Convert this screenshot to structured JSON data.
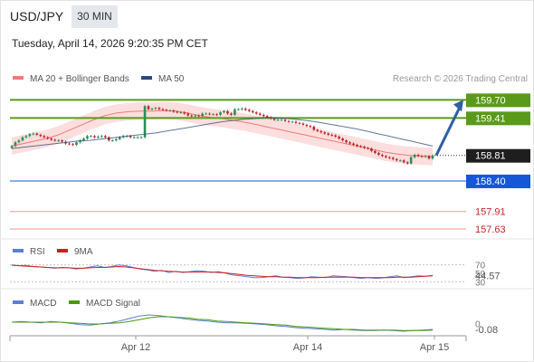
{
  "header": {
    "symbol": "USD/JPY",
    "timeframe": "30 MIN",
    "datetime": "Tuesday, April 14, 2026 9:20:35 PM CET"
  },
  "colors": {
    "bollinger": "#f07a7a",
    "bollinger_fill": "#fbd3d3",
    "ma50": "#2c4a78",
    "up_candle": "#2e8b57",
    "down_candle": "#c0272d",
    "resistance": "#5a9a1a",
    "pivot": "#1557d6",
    "support": "#ee9a9a",
    "arrow": "#2f5fa3",
    "rsi": "#5b7fd6",
    "rsi_ma": "#d01f1f",
    "macd": "#5b7fd6",
    "macd_signal": "#4a9a10"
  },
  "chart_data": [
    {
      "type": "candlestick",
      "legend": [
        "MA 20 + Bollinger Bands",
        "MA 50"
      ],
      "legend_placement": "top-left",
      "copyright": "Research © 2026 Trading Central",
      "ylim": [
        157.5,
        159.85
      ],
      "current_price": "158.81",
      "resistances": [
        {
          "label": "159.70",
          "value": 159.7
        },
        {
          "label": "159.41",
          "value": 159.41
        }
      ],
      "pivot": {
        "label": "158.40",
        "value": 158.4
      },
      "supports": [
        {
          "label": "157.91",
          "value": 157.91
        },
        {
          "label": "157.63",
          "value": 157.63
        }
      ],
      "forecast_arrow": {
        "from": 158.81,
        "to": 159.7
      },
      "candles_close": [
        158.96,
        159.02,
        159.05,
        159.1,
        159.12,
        159.15,
        159.16,
        159.14,
        159.12,
        159.1,
        159.08,
        159.06,
        159.05,
        159.05,
        159.03,
        159.0,
        158.99,
        158.98,
        159.02,
        159.05,
        159.08,
        159.12,
        159.12,
        159.1,
        159.11,
        159.12,
        159.1,
        159.05,
        159.05,
        159.07,
        159.1,
        159.12,
        159.12,
        159.1,
        159.1,
        159.1,
        159.1,
        159.6,
        159.55,
        159.56,
        159.57,
        159.55,
        159.54,
        159.53,
        159.53,
        159.51,
        159.5,
        159.5,
        159.48,
        159.45,
        159.44,
        159.45,
        159.44,
        159.48,
        159.48,
        159.47,
        159.47,
        159.46,
        159.5,
        159.52,
        159.48,
        159.46,
        159.55,
        159.55,
        159.56,
        159.54,
        159.52,
        159.5,
        159.48,
        159.46,
        159.44,
        159.42,
        159.4,
        159.38,
        159.38,
        159.38,
        159.36,
        159.35,
        159.35,
        159.33,
        159.32,
        159.3,
        159.28,
        159.27,
        159.22,
        159.2,
        159.18,
        159.16,
        159.14,
        159.13,
        159.11,
        159.08,
        159.05,
        159.02,
        159.0,
        158.98,
        158.96,
        158.95,
        158.93,
        158.92,
        158.88,
        158.85,
        158.82,
        158.8,
        158.78,
        158.77,
        158.75,
        158.73,
        158.73,
        158.7,
        158.68,
        158.78,
        158.82,
        158.8,
        158.79,
        158.8,
        158.76,
        158.81
      ],
      "ma50": [
        158.92,
        158.94,
        158.96,
        158.98,
        159.0,
        159.02,
        159.04,
        159.05,
        159.07,
        159.09,
        159.11,
        159.13,
        159.15,
        159.17,
        159.2,
        159.23,
        159.26,
        159.29,
        159.32,
        159.35,
        159.37,
        159.39,
        159.4,
        159.42,
        159.41,
        159.4,
        159.38,
        159.36,
        159.33,
        159.3,
        159.27,
        159.24,
        159.2,
        159.16,
        159.12,
        159.08,
        159.04,
        159.0,
        158.96
      ],
      "ma20": [
        158.96,
        159.0,
        159.04,
        159.08,
        159.14,
        159.22,
        159.3,
        159.38,
        159.45,
        159.49,
        159.51,
        159.52,
        159.52,
        159.53,
        159.52,
        159.49,
        159.45,
        159.42,
        159.4,
        159.37,
        159.34,
        159.3,
        159.26,
        159.22,
        159.18,
        159.14,
        159.1,
        159.06,
        159.02,
        158.98,
        158.94,
        158.9,
        158.86,
        158.83,
        158.81,
        158.8,
        158.79
      ]
    },
    {
      "type": "line",
      "title": "RSI",
      "legend": [
        "RSI",
        "9MA"
      ],
      "ticks": [
        "70",
        "50",
        "30"
      ],
      "current_value": "44.57",
      "ylim": [
        20,
        80
      ],
      "series": [
        {
          "name": "RSI",
          "values": [
            70,
            68,
            69,
            66,
            65,
            64,
            62,
            64,
            63,
            60,
            62,
            65,
            68,
            64,
            66,
            70,
            68,
            64,
            60,
            58,
            55,
            57,
            52,
            55,
            52,
            54,
            56,
            55,
            52,
            54,
            50,
            46,
            44,
            42,
            40,
            40,
            42,
            44,
            41,
            40,
            38,
            39,
            42,
            41,
            40,
            44,
            43,
            42,
            40,
            38,
            40,
            38,
            39,
            42,
            44,
            40,
            42,
            44,
            43,
            45
          ]
        },
        {
          "name": "9MA",
          "values": [
            69,
            68,
            67,
            66,
            65,
            64,
            63,
            63,
            63,
            62,
            62,
            63,
            64,
            64,
            65,
            66,
            65,
            63,
            61,
            59,
            57,
            56,
            55,
            54,
            53,
            53,
            53,
            53,
            53,
            52,
            51,
            49,
            47,
            45,
            44,
            43,
            42,
            42,
            41,
            41,
            40,
            40,
            40,
            40,
            41,
            41,
            41,
            41,
            41,
            40,
            40,
            40,
            40,
            40,
            41,
            41,
            41,
            42,
            43,
            44
          ]
        }
      ]
    },
    {
      "type": "line",
      "title": "MACD",
      "legend": [
        "MACD",
        "MACD Signal"
      ],
      "ticks": [
        "0"
      ],
      "current_value": "-0.08",
      "ylim": [
        -0.14,
        0.22
      ],
      "x_ticks": [
        "Apr 12",
        "Apr 14",
        "Apr 15"
      ],
      "series": [
        {
          "name": "MACD",
          "values": [
            0.04,
            0.05,
            0.04,
            0.03,
            0.05,
            0.04,
            0.02,
            0.0,
            -0.01,
            0.01,
            0.03,
            0.06,
            0.1,
            0.14,
            0.16,
            0.15,
            0.13,
            0.11,
            0.09,
            0.07,
            0.06,
            0.04,
            0.03,
            0.03,
            0.02,
            0.01,
            0.0,
            -0.02,
            -0.03,
            -0.05,
            -0.06,
            -0.07,
            -0.08,
            -0.09,
            -0.08,
            -0.09,
            -0.1,
            -0.1,
            -0.09,
            -0.1,
            -0.11,
            -0.1,
            -0.09,
            -0.08
          ]
        },
        {
          "name": "MACD Signal",
          "values": [
            0.04,
            0.04,
            0.04,
            0.04,
            0.04,
            0.04,
            0.03,
            0.02,
            0.01,
            0.01,
            0.02,
            0.03,
            0.05,
            0.08,
            0.11,
            0.13,
            0.13,
            0.12,
            0.11,
            0.09,
            0.08,
            0.06,
            0.05,
            0.04,
            0.03,
            0.02,
            0.01,
            0.0,
            -0.01,
            -0.03,
            -0.04,
            -0.05,
            -0.06,
            -0.07,
            -0.08,
            -0.08,
            -0.09,
            -0.09,
            -0.09,
            -0.09,
            -0.1,
            -0.1,
            -0.1,
            -0.09
          ]
        }
      ]
    }
  ]
}
